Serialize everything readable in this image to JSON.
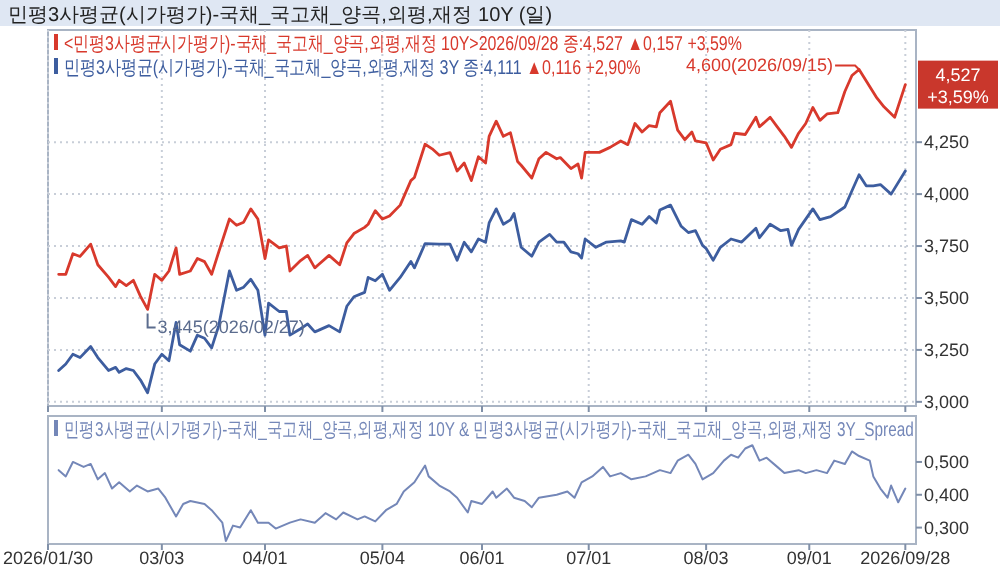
{
  "chart_data": [
    {
      "type": "line",
      "title": "민평3사평균(시가평가)-국채_국고채_양곡,외평,재정 10Y (일)",
      "legend": "top left",
      "grid": true,
      "tick_labels": "y",
      "xlim": [
        "2026-01-30",
        "2026-10-01"
      ],
      "xticks": [
        {
          "value": "2026-01-30",
          "label": null
        },
        {
          "value": "2026-03-03",
          "label": null
        },
        {
          "value": "2026-04-01",
          "label": null
        },
        {
          "value": "2026-05-04",
          "label": null
        },
        {
          "value": "2026-06-01",
          "label": null
        },
        {
          "value": "2026-07-01",
          "label": null
        },
        {
          "value": "2026-08-03",
          "label": null
        },
        {
          "value": "2026-09-01",
          "label": null
        },
        {
          "value": "2026-09-28",
          "label": null
        }
      ],
      "ylim": [
        2.98,
        4.79
      ],
      "yticks": [
        {
          "value": 3.0,
          "label": "3,000"
        },
        {
          "value": 3.25,
          "label": "3,250"
        },
        {
          "value": 3.5,
          "label": "3,500"
        },
        {
          "value": 3.75,
          "label": "3,750"
        },
        {
          "value": 4.0,
          "label": "4,000"
        },
        {
          "value": 4.25,
          "label": "4,250"
        }
      ],
      "annotations": [
        "▲0,157 +3,59%",
        "▲0,116 +2,90%",
        {
          "text": "4,600(2026/09/15)",
          "x": "2026-09-15",
          "y": 4.6
        },
        {
          "text": "3,445(2026/02/27)",
          "x": "2026-02-27",
          "y": 3.445
        },
        {
          "text": "4,527\n+3,59%",
          "x": "2026-09-28",
          "y": 4.527
        }
      ],
      "series": [
        {
          "name": "<민평3사평균시가평가)-국채_국고채_양곡,외평,재정 10Y>2026/09/28 종:4,527",
          "color": "#d8392c",
          "x": [
            "2026-02-02",
            "2026-02-04",
            "2026-02-06",
            "2026-02-08",
            "2026-02-11",
            "2026-02-13",
            "2026-02-16",
            "2026-02-18",
            "2026-02-19",
            "2026-02-21",
            "2026-02-23",
            "2026-02-25",
            "2026-02-27",
            "2026-03-01",
            "2026-03-03",
            "2026-03-05",
            "2026-03-07",
            "2026-03-08",
            "2026-03-11",
            "2026-03-13",
            "2026-03-15",
            "2026-03-17",
            "2026-03-19",
            "2026-03-22",
            "2026-03-24",
            "2026-03-26",
            "2026-03-28",
            "2026-03-30",
            "2026-04-01",
            "2026-04-02",
            "2026-04-05",
            "2026-04-07",
            "2026-04-08",
            "2026-04-11",
            "2026-04-13",
            "2026-04-15",
            "2026-04-16",
            "2026-04-19",
            "2026-04-22",
            "2026-04-24",
            "2026-04-26",
            "2026-04-29",
            "2026-04-30",
            "2026-05-02",
            "2026-05-04",
            "2026-05-06",
            "2026-05-09",
            "2026-05-12",
            "2026-05-13",
            "2026-05-16",
            "2026-05-18",
            "2026-05-20",
            "2026-05-23",
            "2026-05-25",
            "2026-05-27",
            "2026-05-29",
            "2026-05-31",
            "2026-06-02",
            "2026-06-03",
            "2026-06-05",
            "2026-06-07",
            "2026-06-09",
            "2026-06-11",
            "2026-06-12",
            "2026-06-15",
            "2026-06-17",
            "2026-06-19",
            "2026-06-22",
            "2026-06-23",
            "2026-06-26",
            "2026-06-28",
            "2026-06-29",
            "2026-06-30",
            "2026-07-04",
            "2026-07-07",
            "2026-07-10",
            "2026-07-12",
            "2026-07-14",
            "2026-07-16",
            "2026-07-18",
            "2026-07-20",
            "2026-07-21",
            "2026-07-24",
            "2026-07-26",
            "2026-07-28",
            "2026-07-30",
            "2026-07-31",
            "2026-08-03",
            "2026-08-05",
            "2026-08-07",
            "2026-08-10",
            "2026-08-11",
            "2026-08-14",
            "2026-08-17",
            "2026-08-18",
            "2026-08-21",
            "2026-08-23",
            "2026-08-25",
            "2026-08-27",
            "2026-08-29",
            "2026-08-31",
            "2026-09-02",
            "2026-09-04",
            "2026-09-06",
            "2026-09-09",
            "2026-09-11",
            "2026-09-13",
            "2026-09-15",
            "2026-09-20",
            "2026-09-22",
            "2026-09-25",
            "2026-09-28"
          ],
          "values": [
            3.614,
            3.614,
            3.713,
            3.7,
            3.759,
            3.66,
            3.6,
            3.555,
            3.585,
            3.56,
            3.585,
            3.508,
            3.445,
            3.614,
            3.585,
            3.63,
            3.741,
            3.614,
            3.63,
            3.69,
            3.675,
            3.614,
            3.722,
            3.88,
            3.85,
            3.865,
            3.929,
            3.88,
            3.69,
            3.78,
            3.741,
            3.75,
            3.63,
            3.68,
            3.705,
            3.645,
            3.66,
            3.705,
            3.66,
            3.765,
            3.81,
            3.84,
            3.855,
            3.92,
            3.88,
            3.895,
            3.947,
            4.065,
            4.08,
            4.24,
            4.218,
            4.187,
            4.2,
            4.111,
            4.15,
            4.065,
            4.18,
            4.15,
            4.278,
            4.351,
            4.278,
            4.295,
            4.157,
            4.139,
            4.077,
            4.17,
            4.201,
            4.17,
            4.176,
            4.123,
            4.145,
            4.077,
            4.201,
            4.201,
            4.225,
            4.256,
            4.238,
            4.34,
            4.299,
            4.33,
            4.324,
            4.392,
            4.447,
            4.308,
            4.262,
            4.299,
            4.256,
            4.247,
            4.164,
            4.216,
            4.238,
            4.293,
            4.287,
            4.37,
            4.324,
            4.37,
            4.324,
            4.278,
            4.225,
            4.293,
            4.34,
            4.417,
            4.355,
            4.386,
            4.392,
            4.494,
            4.571,
            4.6,
            4.463,
            4.42,
            4.37,
            4.527
          ]
        },
        {
          "name": "민평3사평균(시가평가)-국채_국고채_양곡,외평,재정 3Y 종:4,111",
          "color": "#3d5d9f",
          "x": [
            "2026-02-02",
            "2026-02-04",
            "2026-02-06",
            "2026-02-08",
            "2026-02-11",
            "2026-02-13",
            "2026-02-16",
            "2026-02-18",
            "2026-02-19",
            "2026-02-21",
            "2026-02-23",
            "2026-02-25",
            "2026-02-27",
            "2026-03-01",
            "2026-03-03",
            "2026-03-05",
            "2026-03-07",
            "2026-03-08",
            "2026-03-11",
            "2026-03-13",
            "2026-03-15",
            "2026-03-17",
            "2026-03-19",
            "2026-03-22",
            "2026-03-24",
            "2026-03-26",
            "2026-03-28",
            "2026-03-30",
            "2026-04-01",
            "2026-04-02",
            "2026-04-05",
            "2026-04-07",
            "2026-04-08",
            "2026-04-11",
            "2026-04-13",
            "2026-04-15",
            "2026-04-16",
            "2026-04-19",
            "2026-04-22",
            "2026-04-24",
            "2026-04-26",
            "2026-04-29",
            "2026-04-30",
            "2026-05-02",
            "2026-05-04",
            "2026-05-06",
            "2026-05-09",
            "2026-05-12",
            "2026-05-13",
            "2026-05-16",
            "2026-05-20",
            "2026-05-23",
            "2026-05-25",
            "2026-05-27",
            "2026-05-29",
            "2026-05-31",
            "2026-06-02",
            "2026-06-03",
            "2026-06-05",
            "2026-06-07",
            "2026-06-09",
            "2026-06-10",
            "2026-06-12",
            "2026-06-15",
            "2026-06-17",
            "2026-06-20",
            "2026-06-22",
            "2026-06-24",
            "2026-06-26",
            "2026-06-28",
            "2026-06-29",
            "2026-06-30",
            "2026-07-03",
            "2026-07-06",
            "2026-07-10",
            "2026-07-11",
            "2026-07-13",
            "2026-07-16",
            "2026-07-18",
            "2026-07-20",
            "2026-07-21",
            "2026-07-24",
            "2026-07-27",
            "2026-07-29",
            "2026-07-31",
            "2026-08-02",
            "2026-08-03",
            "2026-08-05",
            "2026-08-07",
            "2026-08-10",
            "2026-08-13",
            "2026-08-17",
            "2026-08-18",
            "2026-08-21",
            "2026-08-24",
            "2026-08-26",
            "2026-08-27",
            "2026-08-29",
            "2026-09-02",
            "2026-09-04",
            "2026-09-07",
            "2026-09-11",
            "2026-09-13",
            "2026-09-15",
            "2026-09-17",
            "2026-09-19",
            "2026-09-21",
            "2026-09-24",
            "2026-09-28"
          ],
          "values": [
            3.151,
            3.182,
            3.229,
            3.213,
            3.266,
            3.213,
            3.151,
            3.166,
            3.142,
            3.16,
            3.151,
            3.105,
            3.044,
            3.182,
            3.229,
            3.198,
            3.382,
            3.275,
            3.244,
            3.321,
            3.306,
            3.26,
            3.367,
            3.63,
            3.537,
            3.552,
            3.59,
            3.537,
            3.321,
            3.475,
            3.435,
            3.435,
            3.321,
            3.352,
            3.375,
            3.337,
            3.344,
            3.367,
            3.337,
            3.46,
            3.506,
            3.527,
            3.599,
            3.583,
            3.614,
            3.537,
            3.599,
            3.676,
            3.645,
            3.762,
            3.759,
            3.759,
            3.682,
            3.768,
            3.722,
            3.784,
            3.768,
            3.861,
            3.929,
            3.855,
            3.876,
            3.907,
            3.744,
            3.701,
            3.769,
            3.806,
            3.769,
            3.769,
            3.722,
            3.713,
            3.692,
            3.784,
            3.744,
            3.769,
            3.775,
            3.769,
            3.877,
            3.855,
            3.892,
            3.861,
            3.923,
            3.947,
            3.845,
            3.815,
            3.824,
            3.753,
            3.738,
            3.682,
            3.744,
            3.784,
            3.769,
            3.836,
            3.79,
            3.855,
            3.824,
            3.83,
            3.753,
            3.83,
            3.929,
            3.877,
            3.892,
            3.938,
            4.016,
            4.093,
            4.04,
            4.04,
            4.046,
            4.0,
            4.111
          ]
        }
      ]
    },
    {
      "type": "line",
      "legend": "top left",
      "xlim": [
        "2026-01-30",
        "2026-10-01"
      ],
      "xticks": [
        {
          "value": "2026-01-30",
          "label": "2026/01/30"
        },
        {
          "value": "2026-03-03",
          "label": "03/03"
        },
        {
          "value": "2026-04-01",
          "label": "04/01"
        },
        {
          "value": "2026-05-04",
          "label": "05/04"
        },
        {
          "value": "2026-06-01",
          "label": "06/01"
        },
        {
          "value": "2026-07-01",
          "label": "07/01"
        },
        {
          "value": "2026-08-03",
          "label": "08/03"
        },
        {
          "value": "2026-09-01",
          "label": "09/01"
        },
        {
          "value": "2026-09-28",
          "label": "2026/09/28"
        }
      ],
      "ylim": [
        0.25,
        0.64
      ],
      "yticks": [
        {
          "value": 0.3,
          "label": "0,300"
        },
        {
          "value": 0.4,
          "label": "0,400"
        },
        {
          "value": 0.5,
          "label": "0,500"
        }
      ],
      "series": [
        {
          "name": "민평3사평균(시가평가)-국채_국고채_양곡,외평,재정 10Y & 민평3사평균(시가평가)-국채_국고채_양곡,외평,재정 3Y_Spread",
          "color": "#7487b8",
          "x": [
            "2026-02-02",
            "2026-02-04",
            "2026-02-06",
            "2026-02-09",
            "2026-02-11",
            "2026-02-13",
            "2026-02-15",
            "2026-02-17",
            "2026-02-19",
            "2026-02-22",
            "2026-02-24",
            "2026-02-27",
            "2026-03-02",
            "2026-03-04",
            "2026-03-07",
            "2026-03-09",
            "2026-03-11",
            "2026-03-15",
            "2026-03-17",
            "2026-03-20",
            "2026-03-21",
            "2026-03-23",
            "2026-03-25",
            "2026-03-28",
            "2026-03-30",
            "2026-04-02",
            "2026-04-04",
            "2026-04-08",
            "2026-04-11",
            "2026-04-15",
            "2026-04-18",
            "2026-04-21",
            "2026-04-23",
            "2026-04-27",
            "2026-04-29",
            "2026-05-02",
            "2026-05-05",
            "2026-05-08",
            "2026-05-10",
            "2026-05-13",
            "2026-05-16",
            "2026-05-17",
            "2026-05-20",
            "2026-05-23",
            "2026-05-25",
            "2026-05-28",
            "2026-05-29",
            "2026-06-01",
            "2026-06-04",
            "2026-06-05",
            "2026-06-08",
            "2026-06-10",
            "2026-06-13",
            "2026-06-15",
            "2026-06-17",
            "2026-06-22",
            "2026-06-25",
            "2026-06-27",
            "2026-06-29",
            "2026-07-02",
            "2026-07-05",
            "2026-07-07",
            "2026-07-10",
            "2026-07-13",
            "2026-07-17",
            "2026-07-21",
            "2026-07-24",
            "2026-07-26",
            "2026-07-29",
            "2026-07-31",
            "2026-08-02",
            "2026-08-05",
            "2026-08-08",
            "2026-08-10",
            "2026-08-12",
            "2026-08-14",
            "2026-08-16",
            "2026-08-18",
            "2026-08-20",
            "2026-08-23",
            "2026-08-25",
            "2026-08-29",
            "2026-08-31",
            "2026-09-03",
            "2026-09-06",
            "2026-09-08",
            "2026-09-11",
            "2026-09-13",
            "2026-09-15",
            "2026-09-18",
            "2026-09-19",
            "2026-09-21",
            "2026-09-23",
            "2026-09-24",
            "2026-09-26",
            "2026-09-28"
          ],
          "values": [
            0.475,
            0.456,
            0.5,
            0.485,
            0.494,
            0.447,
            0.466,
            0.419,
            0.438,
            0.41,
            0.428,
            0.41,
            0.419,
            0.391,
            0.334,
            0.372,
            0.381,
            0.372,
            0.353,
            0.315,
            0.259,
            0.306,
            0.3,
            0.353,
            0.315,
            0.315,
            0.297,
            0.315,
            0.325,
            0.315,
            0.344,
            0.325,
            0.346,
            0.325,
            0.334,
            0.319,
            0.353,
            0.372,
            0.41,
            0.438,
            0.489,
            0.456,
            0.428,
            0.41,
            0.391,
            0.346,
            0.381,
            0.372,
            0.41,
            0.391,
            0.419,
            0.391,
            0.381,
            0.362,
            0.391,
            0.4,
            0.41,
            0.391,
            0.438,
            0.456,
            0.485,
            0.456,
            0.466,
            0.447,
            0.456,
            0.475,
            0.466,
            0.504,
            0.522,
            0.494,
            0.447,
            0.466,
            0.504,
            0.522,
            0.513,
            0.541,
            0.551,
            0.504,
            0.513,
            0.485,
            0.466,
            0.475,
            0.466,
            0.475,
            0.466,
            0.504,
            0.494,
            0.532,
            0.518,
            0.504,
            0.456,
            0.419,
            0.391,
            0.428,
            0.377,
            0.419
          ]
        }
      ]
    }
  ]
}
